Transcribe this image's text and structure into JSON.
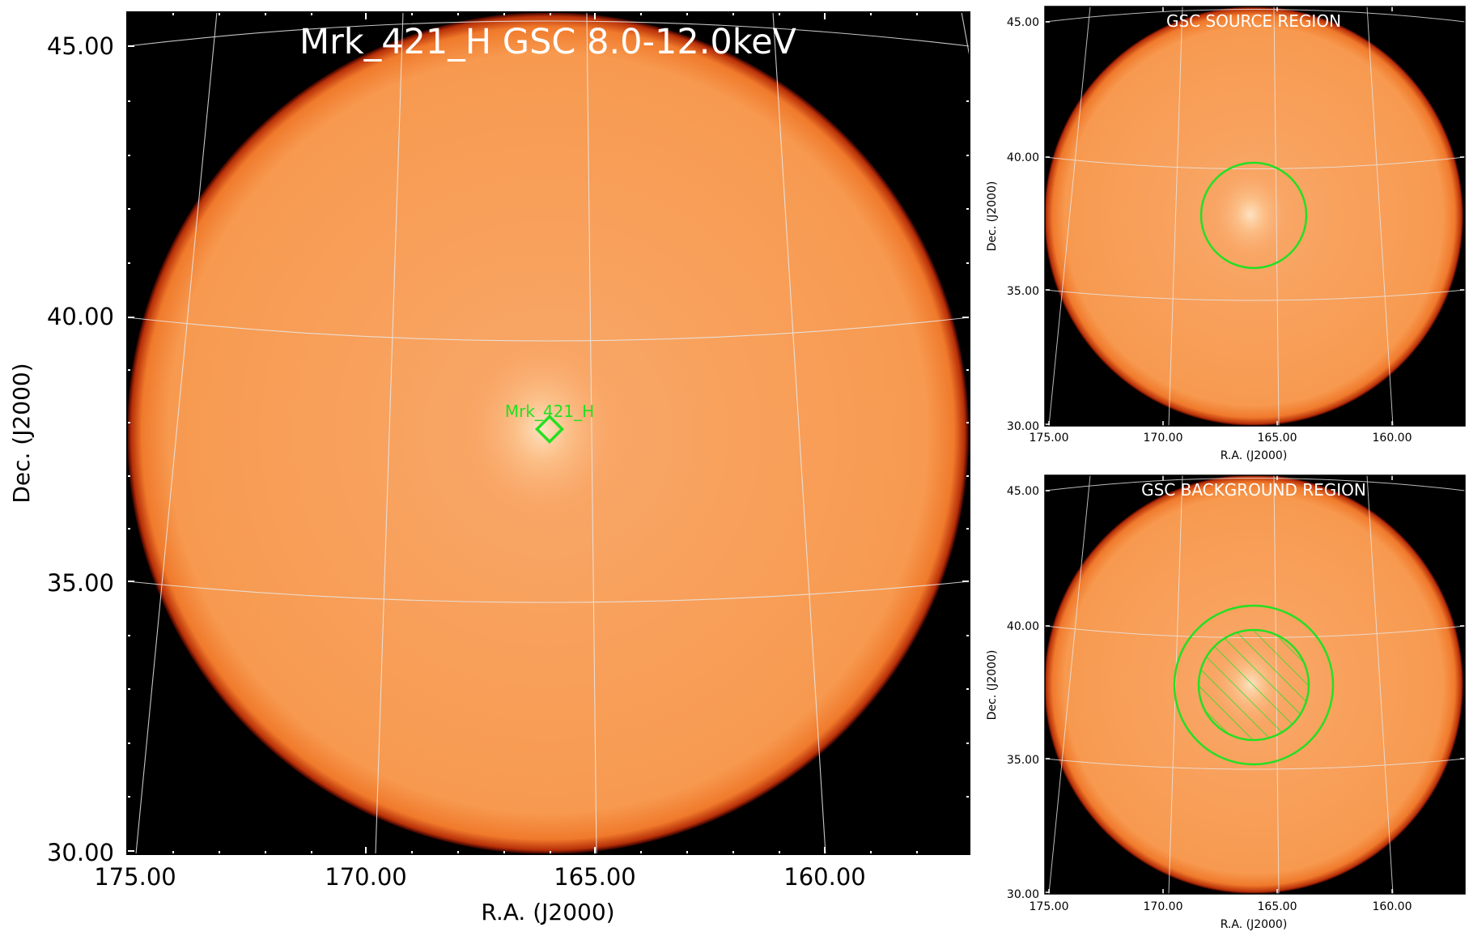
{
  "panels": {
    "main": {
      "title": "Mrk_421_H GSC 8.0-12.0keV",
      "xlabel": "R.A. (J2000)",
      "ylabel": "Dec. (J2000)",
      "x_ticks": [
        "175.00",
        "170.00",
        "165.00",
        "160.00"
      ],
      "y_ticks": [
        "45.00",
        "40.00",
        "35.00",
        "30.00"
      ],
      "source_label": "Mrk_421_H"
    },
    "source_region": {
      "title": "GSC SOURCE REGION",
      "xlabel": "R.A. (J2000)",
      "ylabel": "Dec. (J2000)",
      "x_ticks": [
        "175.00",
        "170.00",
        "165.00",
        "160.00"
      ],
      "y_ticks": [
        "45.00",
        "40.00",
        "35.00",
        "30.00"
      ]
    },
    "background_region": {
      "title": "GSC BACKGROUND REGION",
      "xlabel": "R.A. (J2000)",
      "ylabel": "Dec. (J2000)",
      "x_ticks": [
        "175.00",
        "170.00",
        "165.00",
        "160.00"
      ],
      "y_ticks": [
        "45.00",
        "40.00",
        "35.00",
        "30.00"
      ]
    }
  },
  "colors": {
    "sky_fill": "#f7a35c",
    "sky_edge": "#a01800",
    "frame_bg": "#000000",
    "region": "#22e022",
    "grid": "#e8e8e8"
  }
}
